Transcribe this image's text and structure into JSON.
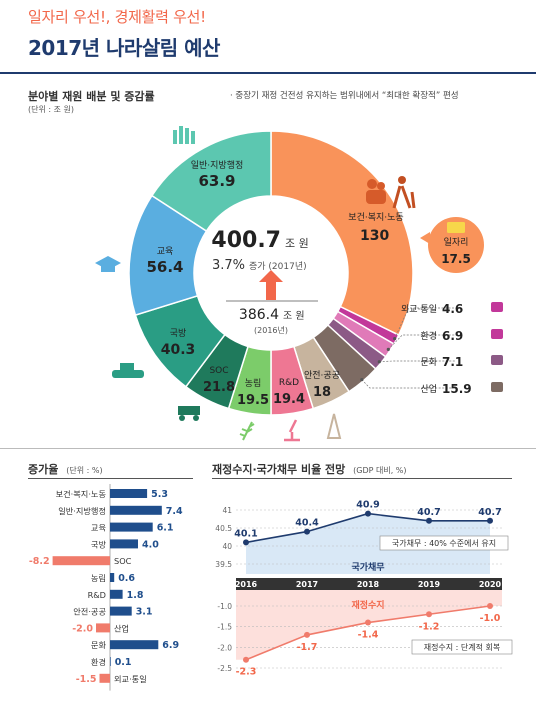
{
  "header": {
    "supertitle": "일자리 우선!, 경제활력 우선!",
    "title": "2017년 나라살림 예산"
  },
  "budget_section": {
    "title": "분야별 재원 배분 및 증감률",
    "unit": "(단위 : 조 원)",
    "note": "· 중장기 재정 건전성 유지하는 범위내에서 “최대한 확장적” 편성"
  },
  "center": {
    "total_value": "400.7",
    "total_unit": "조 원",
    "growth": "3.7%",
    "growth_label": "증가 (2017년)",
    "prev_value": "386.4",
    "prev_unit": "조 원",
    "prev_year": "(2016년)"
  },
  "colors": {
    "health": "#f9935a",
    "foreign": "#c2389a",
    "env": "#e07ab8",
    "culture": "#8c5a86",
    "industry": "#7d6b63",
    "safety": "#c7b49e",
    "rnd": "#ee7793",
    "agri": "#7ccc6a",
    "soc": "#1f7a5c",
    "defense": "#2a9d84",
    "edu": "#5aaee0",
    "gov": "#5cc7b0",
    "accent": "#f2674a",
    "navy": "#1f3b6e",
    "bar_pos": "#1f4e8c",
    "bar_neg": "#f07b6b"
  },
  "chart_data": [
    {
      "type": "pie",
      "title": "분야별 재원 배분 및 증감률",
      "unit": "조 원",
      "slices": [
        {
          "key": "health",
          "label": "보건·복지·노동",
          "value": 130
        },
        {
          "key": "foreign",
          "label": "외교·통일",
          "value": 4.6
        },
        {
          "key": "env",
          "label": "환경",
          "value": 6.9
        },
        {
          "key": "culture",
          "label": "문화",
          "value": 7.1
        },
        {
          "key": "industry",
          "label": "산업",
          "value": 15.9
        },
        {
          "key": "safety",
          "label": "안전·공공",
          "value": 18
        },
        {
          "key": "rnd",
          "label": "R&D",
          "value": 19.4
        },
        {
          "key": "agri",
          "label": "농림",
          "value": 19.5
        },
        {
          "key": "soc",
          "label": "SOC",
          "value": 21.8
        },
        {
          "key": "defense",
          "label": "국방",
          "value": 40.3
        },
        {
          "key": "edu",
          "label": "교육",
          "value": 56.4
        },
        {
          "key": "gov",
          "label": "일반·지방행정",
          "value": 63.9
        }
      ],
      "sub_item": {
        "label": "일자리",
        "value": 17.5
      }
    },
    {
      "type": "bar",
      "title": "증가율",
      "unit": "(단위 : %)",
      "orientation": "horizontal",
      "categories": [
        "보건·복지·노동",
        "일반·지방행정",
        "교육",
        "국방",
        "SOC",
        "농림",
        "R&D",
        "안전·공공",
        "산업",
        "문화",
        "환경",
        "외교·통일"
      ],
      "values": [
        5.3,
        7.4,
        6.1,
        4.0,
        -8.2,
        0.6,
        1.8,
        3.1,
        -2.0,
        6.9,
        0.1,
        -1.5
      ],
      "labels": [
        "5.3",
        "7.4",
        "6.1",
        "4.0",
        "-8.2",
        "0.6",
        "1.8",
        "3.1",
        "-2.0",
        "6.9",
        "0.1",
        "-1.5"
      ]
    },
    {
      "type": "line",
      "title": "재정수지·국가채무 비율 전망",
      "unit": "(GDP 대비, %)",
      "x": [
        "2016",
        "2017",
        "2018",
        "2019",
        "2020"
      ],
      "series": [
        {
          "name": "국가채무",
          "values": [
            40.1,
            40.4,
            40.9,
            40.7,
            40.7
          ],
          "labels": [
            "40.1",
            "40.4",
            "40.9",
            "40.7",
            "40.7"
          ],
          "yticks": [
            "41",
            "40.5",
            "40",
            "39.5"
          ],
          "ylim": [
            39.5,
            41
          ],
          "annotation": "국가채무 : 40% 수준에서 유지"
        },
        {
          "name": "재정수지",
          "values": [
            -2.3,
            -1.7,
            -1.4,
            -1.2,
            -1.0
          ],
          "labels": [
            "-2.3",
            "-1.7",
            "-1.4",
            "-1.2",
            "-1.0"
          ],
          "yticks": [
            "-1.0",
            "-1.5",
            "-2.0",
            "-2.5"
          ],
          "ylim": [
            -2.5,
            -1.0
          ],
          "annotation": "재정수지 : 단계적 회복"
        }
      ]
    }
  ]
}
